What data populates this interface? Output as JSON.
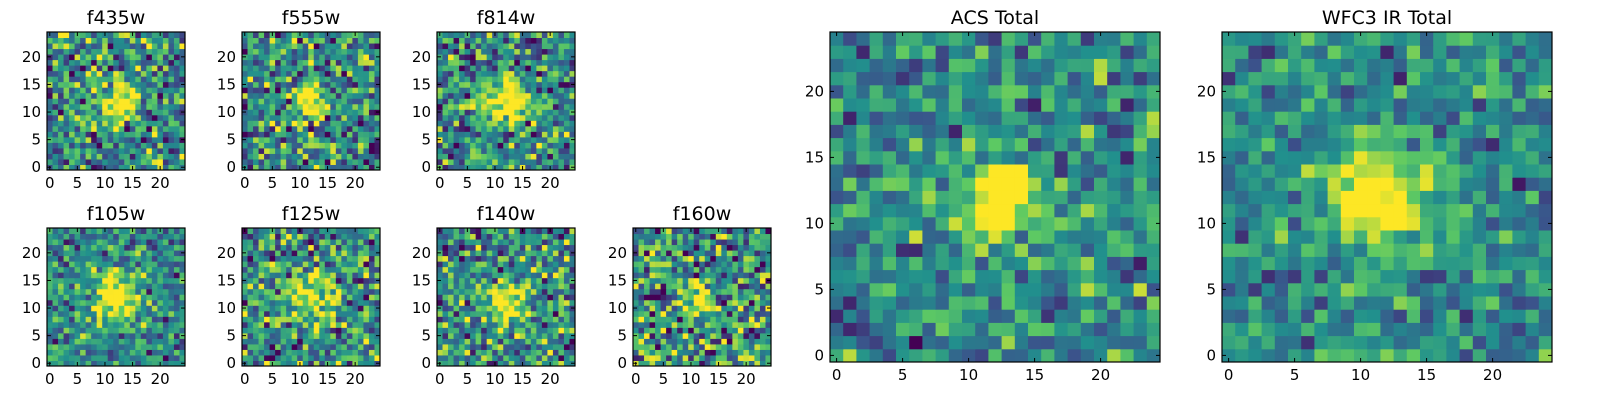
{
  "chart_data": [
    {
      "type": "heatmap",
      "name": "f435w",
      "title": "f435w",
      "xticks": [
        "0",
        "5",
        "10",
        "15",
        "20"
      ],
      "yticks": [
        "0",
        "5",
        "10",
        "15",
        "20"
      ],
      "xlim": [
        0,
        25
      ],
      "ylim": [
        0,
        25
      ],
      "grid_size": 25,
      "source_center": [
        12.5,
        11.5
      ],
      "source_peak": 0.65,
      "source_sigma": 2.4,
      "noise_level": 0.5,
      "colormap": "viridis",
      "cmap_colors": [
        "#440154",
        "#3b528b",
        "#21908d",
        "#5dc963",
        "#fde725"
      ]
    },
    {
      "type": "heatmap",
      "name": "f555w",
      "title": "f555w",
      "xticks": [
        "0",
        "5",
        "10",
        "15",
        "20"
      ],
      "yticks": [
        "0",
        "5",
        "10",
        "15",
        "20"
      ],
      "xlim": [
        0,
        25
      ],
      "ylim": [
        0,
        25
      ],
      "grid_size": 25,
      "source_center": [
        12.0,
        12.0
      ],
      "source_peak": 0.6,
      "source_sigma": 2.2,
      "noise_level": 0.5,
      "colormap": "viridis",
      "cmap_colors": [
        "#440154",
        "#3b528b",
        "#21908d",
        "#5dc963",
        "#fde725"
      ]
    },
    {
      "type": "heatmap",
      "name": "f814w",
      "title": "f814w",
      "xticks": [
        "0",
        "5",
        "10",
        "15",
        "20"
      ],
      "yticks": [
        "0",
        "5",
        "10",
        "15",
        "20"
      ],
      "xlim": [
        0,
        25
      ],
      "ylim": [
        0,
        25
      ],
      "grid_size": 25,
      "source_center": [
        12.0,
        12.0
      ],
      "source_peak": 0.75,
      "source_sigma": 2.6,
      "noise_level": 0.45,
      "colormap": "viridis",
      "cmap_colors": [
        "#440154",
        "#3b528b",
        "#21908d",
        "#5dc963",
        "#fde725"
      ]
    },
    {
      "type": "heatmap",
      "name": "f105w",
      "title": "f105w",
      "xticks": [
        "0",
        "5",
        "10",
        "15",
        "20"
      ],
      "yticks": [
        "0",
        "5",
        "10",
        "15",
        "20"
      ],
      "xlim": [
        0,
        25
      ],
      "ylim": [
        0,
        25
      ],
      "grid_size": 25,
      "source_center": [
        12.0,
        12.0
      ],
      "source_peak": 0.7,
      "source_sigma": 2.8,
      "noise_level": 0.35,
      "colormap": "viridis",
      "cmap_colors": [
        "#440154",
        "#3b528b",
        "#21908d",
        "#5dc963",
        "#fde725"
      ]
    },
    {
      "type": "heatmap",
      "name": "f125w",
      "title": "f125w",
      "xticks": [
        "0",
        "5",
        "10",
        "15",
        "20"
      ],
      "yticks": [
        "0",
        "5",
        "10",
        "15",
        "20"
      ],
      "xlim": [
        0,
        25
      ],
      "ylim": [
        0,
        25
      ],
      "grid_size": 25,
      "source_center": [
        12.5,
        11.5
      ],
      "source_peak": 0.55,
      "source_sigma": 3.0,
      "noise_level": 0.5,
      "colormap": "viridis",
      "cmap_colors": [
        "#440154",
        "#3b528b",
        "#21908d",
        "#5dc963",
        "#fde725"
      ]
    },
    {
      "type": "heatmap",
      "name": "f140w",
      "title": "f140w",
      "xticks": [
        "0",
        "5",
        "10",
        "15",
        "20"
      ],
      "yticks": [
        "0",
        "5",
        "10",
        "15",
        "20"
      ],
      "xlim": [
        0,
        25
      ],
      "ylim": [
        0,
        25
      ],
      "grid_size": 25,
      "source_center": [
        12.0,
        11.0
      ],
      "source_peak": 0.55,
      "source_sigma": 2.8,
      "noise_level": 0.5,
      "colormap": "viridis",
      "cmap_colors": [
        "#440154",
        "#3b528b",
        "#21908d",
        "#5dc963",
        "#fde725"
      ]
    },
    {
      "type": "heatmap",
      "name": "f160w",
      "title": "f160w",
      "xticks": [
        "0",
        "5",
        "10",
        "15",
        "20"
      ],
      "yticks": [
        "0",
        "5",
        "10",
        "15",
        "20"
      ],
      "xlim": [
        0,
        25
      ],
      "ylim": [
        0,
        25
      ],
      "grid_size": 25,
      "source_center": [
        11.5,
        11.5
      ],
      "source_peak": 0.6,
      "source_sigma": 2.4,
      "noise_level": 0.55,
      "colormap": "viridis",
      "cmap_colors": [
        "#440154",
        "#3b528b",
        "#21908d",
        "#5dc963",
        "#fde725"
      ]
    },
    {
      "type": "heatmap",
      "name": "acs-total",
      "title": "ACS Total",
      "xticks": [
        "0",
        "5",
        "10",
        "15",
        "20"
      ],
      "yticks": [
        "0",
        "5",
        "10",
        "15",
        "20"
      ],
      "xlim": [
        0,
        25
      ],
      "ylim": [
        0,
        25
      ],
      "grid_size": 25,
      "source_center": [
        12.0,
        12.0
      ],
      "source_peak": 0.75,
      "source_sigma": 2.2,
      "noise_level": 0.35,
      "colormap": "viridis",
      "cmap_colors": [
        "#440154",
        "#3b528b",
        "#21908d",
        "#5dc963",
        "#fde725"
      ]
    },
    {
      "type": "heatmap",
      "name": "wfc3-ir-total",
      "title": "WFC3 IR Total",
      "xticks": [
        "0",
        "5",
        "10",
        "15",
        "20"
      ],
      "yticks": [
        "0",
        "5",
        "10",
        "15",
        "20"
      ],
      "xlim": [
        0,
        25
      ],
      "ylim": [
        0,
        25
      ],
      "grid_size": 25,
      "source_center": [
        11.5,
        12.0
      ],
      "source_peak": 0.7,
      "source_sigma": 2.6,
      "noise_level": 0.3,
      "colormap": "viridis",
      "cmap_colors": [
        "#440154",
        "#3b528b",
        "#21908d",
        "#5dc963",
        "#fde725"
      ]
    }
  ]
}
